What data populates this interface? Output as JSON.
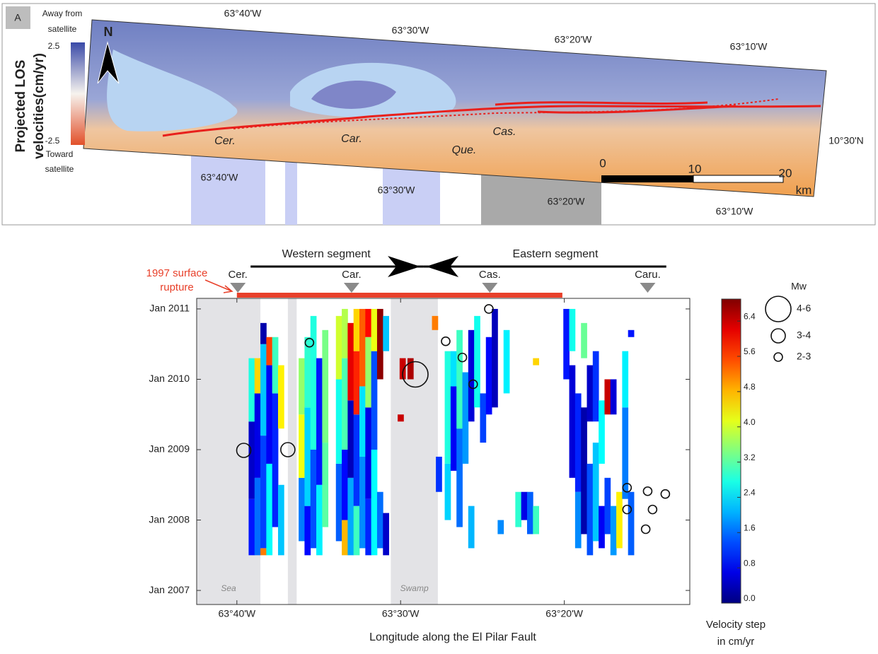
{
  "panel_a": {
    "label": "A",
    "colorbar": {
      "top_label": [
        "Away from",
        "satellite"
      ],
      "bottom_label": [
        "Toward",
        "satellite"
      ],
      "max": "2.5",
      "min": "-2.5",
      "title": [
        "Projected LOS",
        "velocities(cm/yr)"
      ]
    },
    "north": "N",
    "top_longitudes": [
      "63°40'W",
      "63°30'W",
      "63°20'W",
      "63°10'W"
    ],
    "bottom_longitudes": [
      "63°40'W",
      "63°30'W",
      "63°20'W",
      "63°10'W"
    ],
    "latitude": "10°30'N",
    "towns": [
      "Cer.",
      "Car.",
      "Que.",
      "Cas."
    ],
    "scale": [
      "0",
      "10",
      "20",
      "km"
    ]
  },
  "chart_data": {
    "type": "heatmap",
    "xlabel": "Longitude along the El Pilar Fault",
    "xlim": [
      -63.708,
      -63.205
    ],
    "xticks": [
      {
        "value": -63.667,
        "label": "63°40'W"
      },
      {
        "value": -63.5,
        "label": "63°30'W"
      },
      {
        "value": -63.333,
        "label": "63°20'W"
      }
    ],
    "ylim": [
      2006.8,
      2011.15
    ],
    "yticks": [
      {
        "value": 2007,
        "label": "Jan 2007"
      },
      {
        "value": 2008,
        "label": "Jan 2008"
      },
      {
        "value": 2009,
        "label": "Jan 2009"
      },
      {
        "value": 2010,
        "label": "Jan 2010"
      },
      {
        "value": 2011,
        "label": "Jan 2011"
      }
    ],
    "colormap": "jet",
    "colorbar_title": [
      "Velocity step",
      "in cm/yr"
    ],
    "clim": [
      0,
      6.9
    ],
    "cticks": [
      {
        "value": 0,
        "label": "0.0"
      },
      0.8,
      1.6,
      2.4,
      3.2,
      {
        "value": 4,
        "label": "4.0"
      },
      4.8,
      5.6,
      6.4
    ],
    "shaded": [
      {
        "label": "Sea",
        "range": [
          -63.708,
          -63.643
        ]
      },
      {
        "range": [
          -63.615,
          -63.606
        ]
      },
      {
        "label": "Swamp",
        "range": [
          -63.51,
          -63.462
        ]
      }
    ],
    "segments": [
      {
        "label": "Western segment",
        "range": [
          -63.653,
          -63.477
        ]
      },
      {
        "label": "Eastern segment",
        "range": [
          -63.477,
          -63.229
        ]
      }
    ],
    "rupture": {
      "label": [
        "1997 surface",
        "rupture"
      ],
      "range": [
        -63.667,
        -63.335
      ],
      "color": "#e8402a"
    },
    "sites": [
      {
        "label": "Cer.",
        "x": -63.666
      },
      {
        "label": "Car.",
        "x": -63.55
      },
      {
        "label": "Cas.",
        "x": -63.409
      },
      {
        "label": "Caru.",
        "x": -63.248
      }
    ],
    "mw_legend": {
      "title": "Mw",
      "classes": [
        "4-6",
        "3-4",
        "2-3"
      ]
    },
    "earthquakes": [
      [
        -63.66,
        2008.99,
        1
      ],
      [
        -63.615,
        2009.0,
        1
      ],
      [
        -63.593,
        2010.52,
        2
      ],
      [
        -63.485,
        2010.07,
        0
      ],
      [
        -63.454,
        2010.54,
        2
      ],
      [
        -63.437,
        2010.31,
        2
      ],
      [
        -63.426,
        2009.93,
        2
      ],
      [
        -63.41,
        2011.0,
        2
      ],
      [
        -63.269,
        2008.46,
        2
      ],
      [
        -63.248,
        2008.41,
        2
      ],
      [
        -63.23,
        2008.37,
        2
      ],
      [
        -63.269,
        2008.15,
        2
      ],
      [
        -63.243,
        2008.15,
        2
      ],
      [
        -63.25,
        2007.87,
        2
      ]
    ],
    "cells": [
      [
        -63.652,
        2007.5,
        2008.3,
        1.0
      ],
      [
        -63.652,
        2008.3,
        2009.4,
        0.5
      ],
      [
        -63.652,
        2009.4,
        2010.3,
        2.8
      ],
      [
        -63.646,
        2007.5,
        2008.6,
        1.6
      ],
      [
        -63.646,
        2008.6,
        2009.8,
        0.7
      ],
      [
        -63.646,
        2009.8,
        2010.3,
        4.6
      ],
      [
        -63.64,
        2007.5,
        2007.6,
        5.2
      ],
      [
        -63.64,
        2007.6,
        2009.2,
        1.3
      ],
      [
        -63.64,
        2009.2,
        2010.5,
        2.2
      ],
      [
        -63.64,
        2010.5,
        2010.8,
        0.3
      ],
      [
        -63.634,
        2007.5,
        2008.8,
        2.6
      ],
      [
        -63.634,
        2008.8,
        2010.2,
        0.8
      ],
      [
        -63.634,
        2010.2,
        2010.6,
        5.6
      ],
      [
        -63.628,
        2007.9,
        2009.8,
        1.1
      ],
      [
        -63.628,
        2009.8,
        2010.6,
        3.0
      ],
      [
        -63.622,
        2007.5,
        2008.5,
        2.2
      ],
      [
        -63.622,
        2009.3,
        2010.2,
        4.4
      ],
      [
        -63.601,
        2007.7,
        2008.6,
        1.7
      ],
      [
        -63.601,
        2008.6,
        2009.5,
        4.2
      ],
      [
        -63.601,
        2009.5,
        2010.3,
        3.6
      ],
      [
        -63.595,
        2007.5,
        2008.2,
        0.9
      ],
      [
        -63.595,
        2008.2,
        2009.6,
        2.3
      ],
      [
        -63.595,
        2009.6,
        2010.6,
        2.9
      ],
      [
        -63.589,
        2007.6,
        2009.0,
        1.4
      ],
      [
        -63.589,
        2009.0,
        2010.9,
        2.8
      ],
      [
        -63.583,
        2007.5,
        2008.5,
        2.5
      ],
      [
        -63.583,
        2008.5,
        2010.3,
        1.0
      ],
      [
        -63.577,
        2007.9,
        2009.1,
        3.2
      ],
      [
        -63.577,
        2009.1,
        2010.7,
        3.4
      ],
      [
        -63.563,
        2007.7,
        2008.8,
        1.5
      ],
      [
        -63.563,
        2008.8,
        2010.0,
        2.7
      ],
      [
        -63.563,
        2010.0,
        2010.9,
        4.0
      ],
      [
        -63.557,
        2007.5,
        2008.0,
        4.8
      ],
      [
        -63.557,
        2008.0,
        2009.0,
        0.9
      ],
      [
        -63.557,
        2009.0,
        2010.3,
        3.1
      ],
      [
        -63.557,
        2010.3,
        2011.0,
        3.8
      ],
      [
        -63.551,
        2007.5,
        2008.6,
        2.0
      ],
      [
        -63.551,
        2008.6,
        2009.7,
        0.4
      ],
      [
        -63.551,
        2009.7,
        2010.8,
        6.2
      ],
      [
        -63.545,
        2007.5,
        2008.2,
        3.0
      ],
      [
        -63.545,
        2008.2,
        2009.5,
        1.2
      ],
      [
        -63.545,
        2009.5,
        2010.4,
        5.8
      ],
      [
        -63.545,
        2010.4,
        2011.0,
        4.6
      ],
      [
        -63.539,
        2007.6,
        2008.9,
        1.8
      ],
      [
        -63.539,
        2008.9,
        2009.9,
        2.4
      ],
      [
        -63.539,
        2009.9,
        2011.0,
        5.4
      ],
      [
        -63.533,
        2007.5,
        2008.3,
        1.1
      ],
      [
        -63.533,
        2008.3,
        2009.6,
        0.7
      ],
      [
        -63.533,
        2009.6,
        2010.6,
        3.6
      ],
      [
        -63.533,
        2010.6,
        2011.0,
        6.0
      ],
      [
        -63.527,
        2007.5,
        2009.0,
        2.6
      ],
      [
        -63.527,
        2009.0,
        2010.4,
        1.4
      ],
      [
        -63.527,
        2010.4,
        2011.0,
        4.2
      ],
      [
        -63.521,
        2007.6,
        2008.4,
        1.6
      ],
      [
        -63.521,
        2010.0,
        2011.0,
        6.8
      ],
      [
        -63.515,
        2007.5,
        2008.1,
        0.5
      ],
      [
        -63.515,
        2010.4,
        2010.9,
        2.2
      ],
      [
        -63.498,
        2010.0,
        2010.3,
        6.4
      ],
      [
        -63.49,
        2010.0,
        2010.3,
        6.6
      ],
      [
        -63.5,
        2009.4,
        2009.5,
        6.4
      ],
      [
        -63.465,
        2010.7,
        2010.9,
        5.2
      ],
      [
        -63.461,
        2008.4,
        2008.9,
        1.2
      ],
      [
        -63.452,
        2008.0,
        2008.8,
        2.3
      ],
      [
        -63.452,
        2008.8,
        2010.4,
        2.8
      ],
      [
        -63.446,
        2008.7,
        2009.9,
        0.8
      ],
      [
        -63.446,
        2009.9,
        2010.4,
        2.4
      ],
      [
        -63.44,
        2007.9,
        2009.3,
        1.6
      ],
      [
        -63.44,
        2009.3,
        2010.7,
        3.0
      ],
      [
        -63.434,
        2008.8,
        2010.1,
        1.9
      ],
      [
        -63.428,
        2007.6,
        2008.2,
        2.1
      ],
      [
        -63.428,
        2009.4,
        2010.7,
        0.6
      ],
      [
        -63.422,
        2009.6,
        2010.9,
        2.7
      ],
      [
        -63.416,
        2009.1,
        2009.8,
        1.3
      ],
      [
        -63.41,
        2009.5,
        2010.6,
        0.9
      ],
      [
        -63.404,
        2009.6,
        2011.0,
        0.4
      ],
      [
        -63.398,
        2007.8,
        2008.0,
        1.8
      ],
      [
        -63.392,
        2009.8,
        2010.7,
        2.5
      ],
      [
        -63.38,
        2007.9,
        2008.4,
        2.9
      ],
      [
        -63.374,
        2008.0,
        2008.4,
        0.7
      ],
      [
        -63.368,
        2007.8,
        2008.4,
        1.5
      ],
      [
        -63.362,
        2007.8,
        2008.2,
        3.0
      ],
      [
        -63.362,
        2010.2,
        2010.3,
        4.6
      ],
      [
        -63.331,
        2010.0,
        2011.0,
        1.0
      ],
      [
        -63.325,
        2008.6,
        2010.2,
        0.6
      ],
      [
        -63.325,
        2010.4,
        2011.0,
        2.7
      ],
      [
        -63.319,
        2007.6,
        2008.4,
        1.8
      ],
      [
        -63.319,
        2008.4,
        2009.8,
        1.1
      ],
      [
        -63.313,
        2007.8,
        2009.6,
        0.3
      ],
      [
        -63.313,
        2010.3,
        2010.8,
        3.3
      ],
      [
        -63.307,
        2007.5,
        2008.8,
        1.4
      ],
      [
        -63.307,
        2009.4,
        2010.2,
        0.5
      ],
      [
        -63.301,
        2007.7,
        2009.1,
        2.2
      ],
      [
        -63.301,
        2009.4,
        2010.4,
        1.2
      ],
      [
        -63.295,
        2007.6,
        2008.2,
        0.8
      ],
      [
        -63.295,
        2008.8,
        2009.7,
        2.6
      ],
      [
        -63.289,
        2007.8,
        2008.6,
        1.3
      ],
      [
        -63.289,
        2009.5,
        2010.0,
        6.4
      ],
      [
        -63.283,
        2007.5,
        2008.2,
        1.9
      ],
      [
        -63.283,
        2009.5,
        2010.0,
        0.6
      ],
      [
        -63.277,
        2007.6,
        2008.4,
        4.4
      ],
      [
        -63.271,
        2008.3,
        2009.6,
        1.7
      ],
      [
        -63.271,
        2009.6,
        2010.4,
        2.5
      ],
      [
        -63.265,
        2007.5,
        2008.4,
        1.5
      ],
      [
        -63.265,
        2010.6,
        2010.7,
        1.0
      ]
    ]
  }
}
